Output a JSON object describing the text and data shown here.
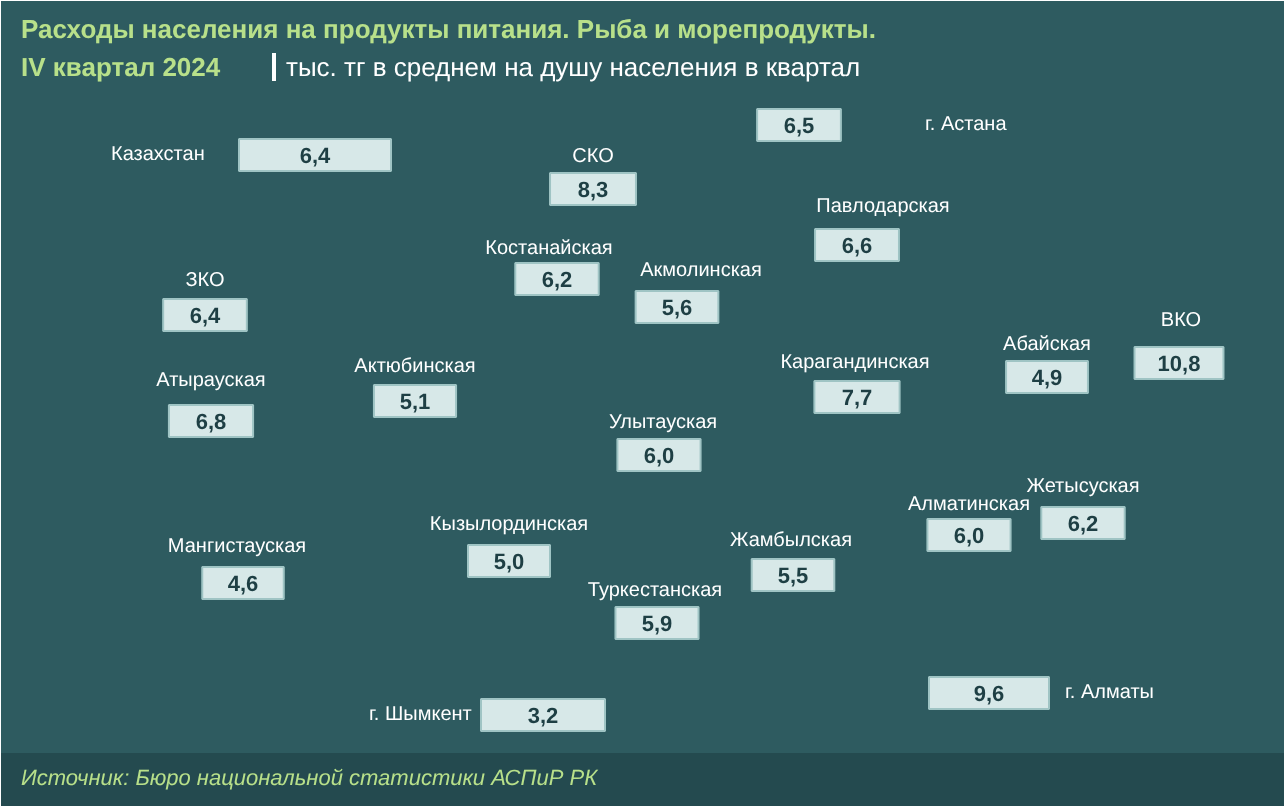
{
  "chart_data": {
    "type": "other",
    "title": "Расходы населения на продукты питания. Рыба и морепродукты.\nIV квартал 2024",
    "subtitle": "тыс. тг в среднем на душу населения в квартал",
    "categories": [
      "Казахстан",
      "г. Астана",
      "СКО",
      "Павлодарская",
      "Костанайская",
      "Акмолинская",
      "ЗКО",
      "Актюбинская",
      "Атырауская",
      "Карагандинская",
      "Абайская",
      "ВКО",
      "Улытауская",
      "Кызылординская",
      "Мангистауская",
      "Алматинская",
      "Жетысуская",
      "Жамбылская",
      "Туркестанская",
      "г. Шымкент",
      "г. Алматы"
    ],
    "values": [
      6.4,
      6.5,
      8.3,
      6.6,
      6.2,
      5.6,
      6.4,
      5.1,
      6.8,
      7.7,
      4.9,
      10.8,
      6.0,
      5.0,
      4.6,
      6.0,
      6.2,
      5.5,
      5.9,
      3.2,
      9.6
    ],
    "value_labels": [
      "6,4",
      "6,5",
      "8,3",
      "6,6",
      "6,2",
      "5,6",
      "6,4",
      "5,1",
      "6,8",
      "7,7",
      "4,9",
      "10,8",
      "6,0",
      "5,0",
      "4,6",
      "6,0",
      "6,2",
      "5,5",
      "5,9",
      "3,2",
      "9,6"
    ],
    "annotations": [
      "Источник: Бюро национальной статистики АСПиР РК"
    ]
  }
}
